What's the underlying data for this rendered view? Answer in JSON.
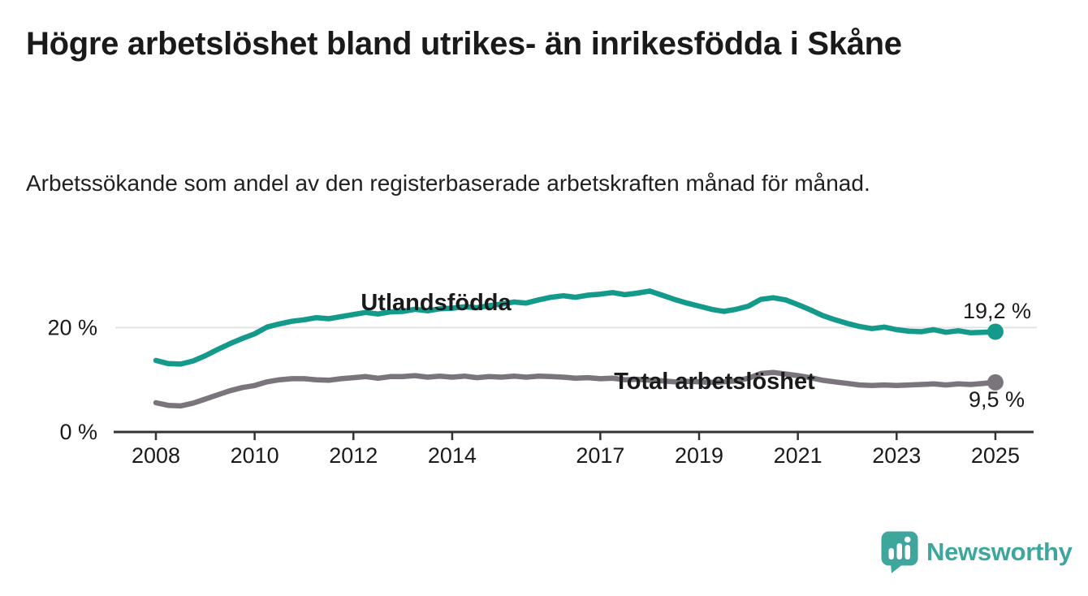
{
  "chart_data": {
    "type": "line",
    "title": "Högre arbetslöshet bland utrikes- än inrikesfödda i Skåne",
    "subtitle": "Arbetssökande som andel av den registerbaserade arbetskraften månad för månad.",
    "xlabel": "",
    "ylabel": "",
    "ylim": [
      0,
      29
    ],
    "xlim": [
      2008,
      2025
    ],
    "grid": "single horizontal gridline at 20 %",
    "legend_position": "inline labels on lines",
    "x": [
      2008,
      2008.25,
      2008.5,
      2008.75,
      2009,
      2009.25,
      2009.5,
      2009.75,
      2010,
      2010.25,
      2010.5,
      2010.75,
      2011,
      2011.25,
      2011.5,
      2011.75,
      2012,
      2012.25,
      2012.5,
      2012.75,
      2013,
      2013.25,
      2013.5,
      2013.75,
      2014,
      2014.25,
      2014.5,
      2014.75,
      2015,
      2015.25,
      2015.5,
      2015.75,
      2016,
      2016.25,
      2016.5,
      2016.75,
      2017,
      2017.25,
      2017.5,
      2017.75,
      2018,
      2018.25,
      2018.5,
      2018.75,
      2019,
      2019.25,
      2019.5,
      2019.75,
      2020,
      2020.25,
      2020.5,
      2020.75,
      2021,
      2021.25,
      2021.5,
      2021.75,
      2022,
      2022.25,
      2022.5,
      2022.75,
      2023,
      2023.25,
      2023.5,
      2023.75,
      2024,
      2024.25,
      2024.5,
      2024.75,
      2025
    ],
    "series": [
      {
        "name": "Utlandsfödda",
        "end_label": "19,2 %",
        "end_value": 19.2,
        "color_key": "teal",
        "label_color_key": "teal",
        "values": [
          13.7,
          13.1,
          13.0,
          13.6,
          14.6,
          15.8,
          16.9,
          17.9,
          18.8,
          20.1,
          20.7,
          21.2,
          21.5,
          21.9,
          21.7,
          22.1,
          22.5,
          22.9,
          22.6,
          23.0,
          23.1,
          23.5,
          23.2,
          23.6,
          23.7,
          24.0,
          23.8,
          24.2,
          24.5,
          24.9,
          24.7,
          25.3,
          25.8,
          26.1,
          25.8,
          26.2,
          26.4,
          26.7,
          26.3,
          26.6,
          27.0,
          26.2,
          25.4,
          24.7,
          24.1,
          23.5,
          23.1,
          23.5,
          24.1,
          25.4,
          25.7,
          25.3,
          24.4,
          23.4,
          22.3,
          21.5,
          20.8,
          20.2,
          19.8,
          20.1,
          19.6,
          19.3,
          19.2,
          19.6,
          19.1,
          19.4,
          19.0,
          19.1,
          19.2
        ]
      },
      {
        "name": "Total arbetslöshet",
        "end_label": "9,5 %",
        "end_value": 9.5,
        "color_key": "gray",
        "label_color_key": "gray_label",
        "values": [
          5.6,
          5.1,
          5.0,
          5.5,
          6.3,
          7.1,
          7.9,
          8.5,
          8.9,
          9.6,
          10.0,
          10.2,
          10.2,
          10.0,
          9.9,
          10.2,
          10.4,
          10.6,
          10.3,
          10.6,
          10.6,
          10.8,
          10.5,
          10.7,
          10.5,
          10.7,
          10.4,
          10.6,
          10.5,
          10.7,
          10.5,
          10.7,
          10.6,
          10.5,
          10.3,
          10.4,
          10.2,
          10.3,
          10.0,
          10.1,
          9.9,
          9.8,
          9.6,
          9.7,
          9.6,
          9.5,
          9.6,
          9.8,
          10.3,
          11.2,
          11.4,
          11.1,
          10.8,
          10.4,
          9.9,
          9.6,
          9.3,
          9.0,
          8.9,
          9.0,
          8.9,
          9.0,
          9.1,
          9.2,
          9.0,
          9.2,
          9.1,
          9.3,
          9.5
        ]
      }
    ],
    "xticks": [
      {
        "value": 2008,
        "label": "2008"
      },
      {
        "value": 2010,
        "label": "2010"
      },
      {
        "value": 2012,
        "label": "2012"
      },
      {
        "value": 2014,
        "label": "2014"
      },
      {
        "value": 2017,
        "label": "2017"
      },
      {
        "value": 2019,
        "label": "2019"
      },
      {
        "value": 2021,
        "label": "2021"
      },
      {
        "value": 2023,
        "label": "2023"
      },
      {
        "value": 2025,
        "label": "2025"
      }
    ],
    "yticks": [
      {
        "value": 0,
        "label": "0 %"
      },
      {
        "value": 20,
        "label": "20 %"
      }
    ]
  },
  "colors": {
    "teal": "#139a8b",
    "gray": "#7a757c",
    "gray_label": "#86838b",
    "axis": "#333333",
    "grid": "#e3e3e3",
    "text": "#1a1a1a",
    "logo": "#3ea69d",
    "background": "#ffffff"
  },
  "footer": {
    "logo_text": "Newsworthy",
    "logo_icon": "speech-bubble-bar-chart-icon"
  }
}
